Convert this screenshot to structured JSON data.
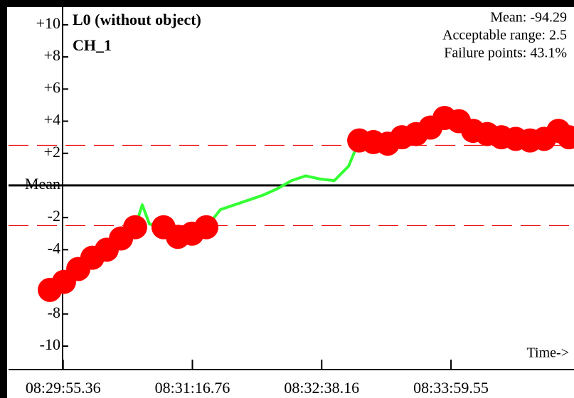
{
  "chart_data": {
    "type": "line",
    "title": "L0 (without object)",
    "subtitle": "CH_1",
    "annotations": [
      "Mean: -94.29",
      "Acceptable range: 2.5",
      "Failure points: 43.1%"
    ],
    "x_label": "Time->",
    "limits": [
      2.5,
      -2.5
    ],
    "series": [
      {
        "color": "#33ff33",
        "failure_color": "#ff0000",
        "x": [
          30587.0,
          30595.9,
          30604.9,
          30613.8,
          30622.8,
          30631.8,
          30640.7,
          30645.2,
          30649.7,
          30658.6,
          30667.6,
          30676.5,
          30685.5,
          30694.5,
          30703.4,
          30712.4,
          30721.3,
          30730.3,
          30739.2,
          30748.2,
          30757.1,
          30766.1,
          30775.1,
          30781.8,
          30790.7,
          30799.7,
          30808.7,
          30817.6,
          30826.6,
          30835.5,
          30844.5,
          30853.5,
          30862.4,
          30871.3,
          30880.3,
          30889.3,
          30898.2,
          30907.2,
          30913.9
        ],
        "values": [
          -6.5,
          -6.0,
          -5.2,
          -4.5,
          -4.0,
          -3.3,
          -2.6,
          -1.2,
          -2.4,
          -2.6,
          -3.2,
          -3.0,
          -2.6,
          -1.5,
          -1.2,
          -0.9,
          -0.6,
          -0.2,
          0.3,
          0.6,
          0.4,
          0.3,
          1.2,
          2.8,
          2.7,
          2.6,
          3.0,
          3.2,
          3.6,
          4.2,
          4.0,
          3.4,
          3.2,
          3.0,
          2.9,
          2.8,
          2.9,
          3.4,
          3.0
        ]
      }
    ],
    "xlim": [
      30561,
      30917
    ],
    "xticks": [
      {
        "value": 30595.36,
        "label": "08:29:55.36"
      },
      {
        "value": 30676.76,
        "label": "08:31:16.76"
      },
      {
        "value": 30758.16,
        "label": "08:32:38.16"
      },
      {
        "value": 30839.55,
        "label": "08:33:59.55"
      }
    ],
    "ylim": [
      -11.46,
      11.1
    ],
    "yticks": [
      {
        "value": 10,
        "label": "+10"
      },
      {
        "value": 8,
        "label": "+8"
      },
      {
        "value": 6,
        "label": "+6"
      },
      {
        "value": 4,
        "label": "+4"
      },
      {
        "value": 2,
        "label": "+2"
      },
      {
        "value": 0,
        "label": "Mean"
      },
      -2,
      -4,
      -6,
      -8,
      -10
    ]
  }
}
